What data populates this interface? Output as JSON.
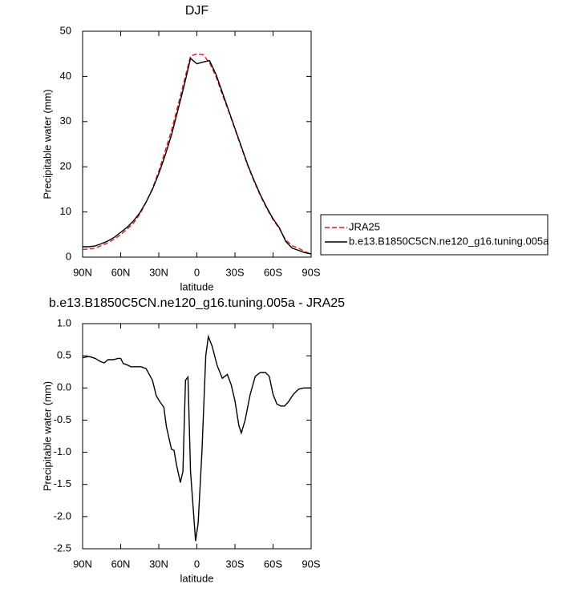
{
  "chart_data": [
    {
      "type": "line",
      "title": "DJF",
      "x_label": "latitude",
      "y_label": "Precipitable water (mm)",
      "x": [
        90,
        85,
        80,
        75,
        70,
        65,
        60,
        55,
        50,
        45,
        40,
        35,
        30,
        25,
        20,
        15,
        10,
        5,
        0,
        -5,
        -10,
        -15,
        -20,
        -25,
        -30,
        -35,
        -40,
        -45,
        -50,
        -55,
        -60,
        -65,
        -70,
        -75,
        -80,
        -85,
        -90
      ],
      "series": [
        {
          "name": "JRA25",
          "color": "#e8141c",
          "dash": "dashed",
          "values": [
            1.7,
            1.8,
            2.0,
            2.6,
            3.2,
            4.0,
            5.0,
            6.2,
            7.5,
            9.5,
            12.2,
            15.2,
            19,
            23.5,
            28,
            33.5,
            39,
            44.5,
            45,
            44.8,
            43,
            40,
            36,
            32.3,
            28.3,
            24.3,
            20.3,
            16.8,
            13.6,
            10.8,
            8.3,
            6.3,
            3.8,
            2.5,
            2.0,
            1.2,
            0.7
          ]
        },
        {
          "name": "b.e13.B1850C5CN.ne120_g16.tuning.005a",
          "color": "#000000",
          "dash": "solid",
          "values": [
            2.3,
            2.3,
            2.5,
            3.0,
            3.6,
            4.4,
            5.5,
            6.6,
            8.0,
            9.8,
            12.2,
            15.0,
            18.5,
            22.5,
            27,
            32.5,
            38,
            44,
            42.8,
            43.2,
            43.5,
            40.5,
            36.5,
            32.5,
            28.5,
            24.5,
            20.5,
            17,
            13.8,
            11,
            8.5,
            6.5,
            3.5,
            2.0,
            1.5,
            1.0,
            0.7
          ]
        }
      ],
      "xlim": [
        90,
        -90
      ],
      "xticks": [
        {
          "value": 90,
          "label": "90N"
        },
        {
          "value": 60,
          "label": "60N"
        },
        {
          "value": 30,
          "label": "30N"
        },
        0,
        {
          "value": -30,
          "label": "30S"
        },
        {
          "value": -60,
          "label": "60S"
        },
        {
          "value": -90,
          "label": "90S"
        }
      ],
      "ylim": [
        0,
        50
      ],
      "yticks": [
        0,
        10,
        20,
        30,
        40,
        50
      ],
      "grid": false,
      "legend": "right"
    },
    {
      "type": "line",
      "title": "b.e13.B1850C5CN.ne120_g16.tuning.005a - JRA25",
      "x_label": "latitude",
      "y_label": "Precipitable water (mm)",
      "x": [
        90,
        85,
        80,
        76,
        73,
        70,
        66,
        62,
        60,
        58,
        55,
        52,
        48,
        44,
        40,
        35,
        32,
        29,
        26,
        24,
        20,
        18,
        16,
        13,
        11,
        9,
        7,
        5,
        1,
        -1,
        -4,
        -7,
        -9,
        -12,
        -16,
        -20,
        -24,
        -27,
        -30,
        -33,
        -35,
        -38,
        -42,
        -46,
        -50,
        -54,
        -57,
        -60,
        -63,
        -66,
        -69,
        -72,
        -76,
        -80,
        -84,
        -90
      ],
      "values": [
        0.47,
        0.49,
        0.46,
        0.41,
        0.39,
        0.44,
        0.44,
        0.46,
        0.46,
        0.38,
        0.36,
        0.33,
        0.33,
        0.33,
        0.3,
        0.12,
        -0.12,
        -0.22,
        -0.3,
        -0.6,
        -0.95,
        -0.97,
        -1.2,
        -1.47,
        -1.3,
        0.12,
        0.17,
        -1.3,
        -2.38,
        -2.1,
        -1.0,
        0.5,
        0.8,
        0.65,
        0.35,
        0.15,
        0.21,
        0.05,
        -0.2,
        -0.58,
        -0.7,
        -0.5,
        -0.1,
        0.18,
        0.24,
        0.24,
        0.18,
        -0.1,
        -0.25,
        -0.28,
        -0.28,
        -0.22,
        -0.1,
        -0.02,
        0.0,
        0.0
      ],
      "color": "#000000",
      "xlim": [
        90,
        -90
      ],
      "xticks": [
        {
          "value": 90,
          "label": "90N"
        },
        {
          "value": 60,
          "label": "60N"
        },
        {
          "value": 30,
          "label": "30N"
        },
        0,
        {
          "value": -30,
          "label": "30S"
        },
        {
          "value": -60,
          "label": "60S"
        },
        {
          "value": -90,
          "label": "90S"
        }
      ],
      "ylim": [
        -2.5,
        1
      ],
      "yticks": [
        {
          "value": 1,
          "label": "1.0"
        },
        0.5,
        {
          "value": 0,
          "label": "0.0"
        },
        -0.5,
        {
          "value": -1,
          "label": "-1.0"
        },
        -1.5,
        {
          "value": -2,
          "label": "-2.0"
        },
        -2.5
      ],
      "grid": false
    }
  ]
}
